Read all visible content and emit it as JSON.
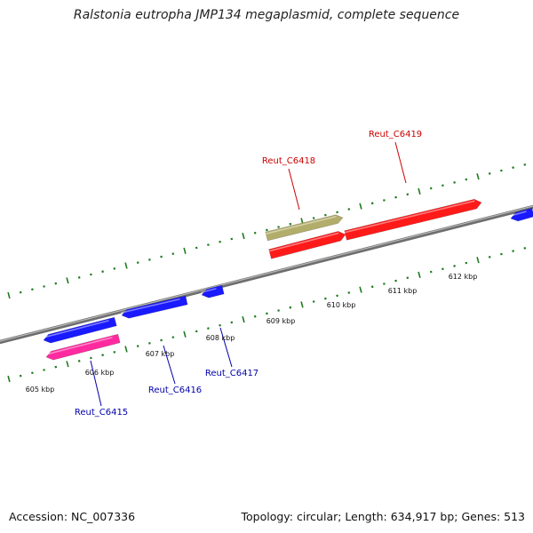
{
  "title": "Ralstonia eutropha JMP134 megaplasmid, complete sequence",
  "footer": {
    "accession": "Accession: NC_007336",
    "summary": "Topology: circular; Length: 634,917 bp; Genes: 513"
  },
  "colors": {
    "backbone": "#888888",
    "tick": "#1f7a1f",
    "gene_blue": "#1a1aff",
    "gene_red": "#ff1a1a",
    "gene_pink": "#ff2aa0",
    "gene_olive": "#b3ad6b",
    "label_red": "#cc0000",
    "label_blue": "#0000aa"
  },
  "scale": {
    "unit": "kbp",
    "tick_labels": [
      "605 kbp",
      "606 kbp",
      "607 kbp",
      "608 kbp",
      "609 kbp",
      "610 kbp",
      "611 kbp",
      "612 kbp"
    ]
  },
  "genes": [
    {
      "name": "Reut_C6415",
      "strand": "reverse",
      "color": "gene_pink",
      "labeled": true
    },
    {
      "name": "",
      "strand": "reverse",
      "color": "gene_blue",
      "labeled": false
    },
    {
      "name": "Reut_C6416",
      "strand": "reverse",
      "color": "gene_blue",
      "labeled": true
    },
    {
      "name": "Reut_C6417",
      "strand": "reverse",
      "color": "gene_blue",
      "labeled": true
    },
    {
      "name": "Reut_C6418",
      "strand": "forward",
      "color": "gene_olive",
      "labeled": true
    },
    {
      "name": "",
      "strand": "forward",
      "color": "gene_red",
      "labeled": false
    },
    {
      "name": "Reut_C6419",
      "strand": "forward",
      "color": "gene_red",
      "labeled": true
    },
    {
      "name": "",
      "strand": "reverse",
      "color": "gene_blue",
      "labeled": false
    }
  ]
}
